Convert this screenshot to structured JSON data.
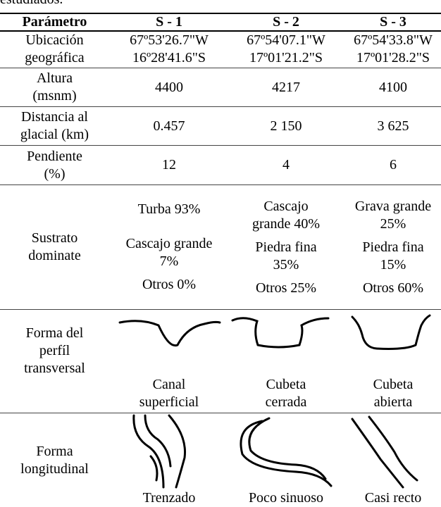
{
  "caption_fragment": "estudiados.",
  "table": {
    "header": [
      "Parámetro",
      "S - 1",
      "S - 2",
      "S - 3"
    ],
    "rows": [
      [
        [
          "Ubicación",
          "geográfica"
        ],
        [
          "67º53'26.7\"W",
          "16º28'41.6\"S"
        ],
        [
          "67º54'07.1\"W",
          "17º01'21.2\"S"
        ],
        [
          "67º54'33.8\"W",
          "17º01'28.2\"S"
        ]
      ],
      [
        [
          "Altura",
          "(msnm)"
        ],
        [
          "4400"
        ],
        [
          "4217"
        ],
        [
          "4100"
        ]
      ],
      [
        [
          "Distancia al",
          "glacial (km)"
        ],
        [
          "0.457"
        ],
        [
          "2 150"
        ],
        [
          "3 625"
        ]
      ],
      [
        [
          "Pendiente",
          "(%)"
        ],
        [
          "12"
        ],
        [
          "4"
        ],
        [
          "6"
        ]
      ],
      [
        [
          "Sustrato",
          "dominate"
        ],
        [
          [
            "Turba 93%"
          ],
          [
            "Cascajo grande",
            "7%"
          ],
          [
            "Otros 0%"
          ]
        ],
        [
          [
            "Cascajo",
            "grande 40%"
          ],
          [
            "Piedra fina",
            "35%"
          ],
          [
            "Otros 25%"
          ]
        ],
        [
          [
            "Grava grande",
            "25%"
          ],
          [
            "Piedra fina",
            "15%"
          ],
          [
            "Otros 60%"
          ]
        ]
      ],
      [
        [
          "Forma del",
          "perfíl",
          "transversal"
        ],
        [
          "Canal",
          "superficial"
        ],
        [
          "Cubeta",
          "cerrada"
        ],
        [
          "Cubeta",
          "abierta"
        ]
      ],
      [
        [
          "Forma",
          "longitudinal"
        ],
        [
          "Trenzado"
        ],
        [
          "Poco sinuoso"
        ],
        [
          "Casi recto"
        ]
      ]
    ]
  }
}
